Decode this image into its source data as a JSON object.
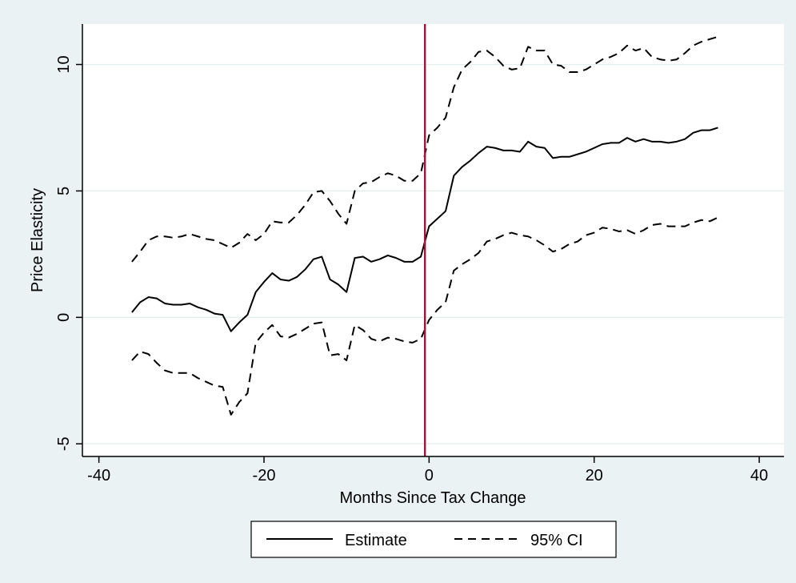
{
  "chart_data": {
    "type": "line",
    "title": "",
    "xlabel": "Months Since Tax Change",
    "ylabel": "Price Elasticity",
    "xlim": [
      -42,
      43
    ],
    "ylim": [
      -5.5,
      11.6
    ],
    "xticks": [
      -40,
      -20,
      0,
      20,
      40
    ],
    "xtick_labels": [
      "-40",
      "-20",
      "0",
      "20",
      "40"
    ],
    "yticks": [
      -5,
      0,
      5,
      10
    ],
    "ytick_labels": [
      "-5",
      "0",
      "5",
      "10"
    ],
    "grid": "horizontal",
    "legend_placement": "bottom",
    "event_line_x": -0.5,
    "x": [
      -36,
      -35,
      -34,
      -33,
      -32,
      -31,
      -30,
      -29,
      -28,
      -27,
      -26,
      -25,
      -24,
      -23,
      -22,
      -21,
      -20,
      -19,
      -18,
      -17,
      -16,
      -15,
      -14,
      -13,
      -12,
      -11,
      -10,
      -9,
      -8,
      -7,
      -6,
      -5,
      -4,
      -3,
      -2,
      -1,
      0,
      1,
      2,
      3,
      4,
      5,
      6,
      7,
      8,
      9,
      10,
      11,
      12,
      13,
      14,
      15,
      16,
      17,
      18,
      19,
      20,
      21,
      22,
      23,
      24,
      25,
      26,
      27,
      28,
      29,
      30,
      31,
      32,
      33,
      34,
      35
    ],
    "series": [
      {
        "name": "Estimate",
        "style": "solid",
        "values": [
          0.2,
          0.6,
          0.8,
          0.75,
          0.55,
          0.5,
          0.5,
          0.55,
          0.4,
          0.3,
          0.15,
          0.1,
          -0.55,
          -0.2,
          0.1,
          1.0,
          1.4,
          1.75,
          1.5,
          1.45,
          1.6,
          1.9,
          2.3,
          2.4,
          1.5,
          1.3,
          1.0,
          2.35,
          2.4,
          2.2,
          2.3,
          2.45,
          2.35,
          2.2,
          2.2,
          2.4,
          3.6,
          3.9,
          4.2,
          5.6,
          5.95,
          6.2,
          6.5,
          6.75,
          6.7,
          6.6,
          6.6,
          6.55,
          6.95,
          6.75,
          6.7,
          6.3,
          6.35,
          6.35,
          6.45,
          6.55,
          6.7,
          6.85,
          6.9,
          6.9,
          7.1,
          6.95,
          7.05,
          6.95,
          6.95,
          6.9,
          6.95,
          7.05,
          7.3,
          7.4,
          7.4,
          7.5
        ]
      },
      {
        "name": "95% CI",
        "style": "dashed",
        "values": [
          2.2,
          2.6,
          3.05,
          3.2,
          3.2,
          3.15,
          3.2,
          3.3,
          3.2,
          3.1,
          3.05,
          2.9,
          2.75,
          2.95,
          3.3,
          3.05,
          3.3,
          3.8,
          3.75,
          3.75,
          4.05,
          4.45,
          4.95,
          5.0,
          4.6,
          4.1,
          3.7,
          5.0,
          5.3,
          5.35,
          5.55,
          5.7,
          5.6,
          5.4,
          5.4,
          5.7,
          7.2,
          7.5,
          7.9,
          9.1,
          9.8,
          10.1,
          10.5,
          10.55,
          10.3,
          9.95,
          9.8,
          9.85,
          10.7,
          10.55,
          10.55,
          10.0,
          9.95,
          9.7,
          9.7,
          9.8,
          10.0,
          10.2,
          10.3,
          10.45,
          10.75,
          10.55,
          10.65,
          10.3,
          10.2,
          10.15,
          10.2,
          10.45,
          10.75,
          10.9,
          11.0,
          11.1
        ]
      },
      {
        "name": "95% CI",
        "style": "dashed",
        "values": [
          -1.7,
          -1.35,
          -1.45,
          -1.8,
          -2.1,
          -2.2,
          -2.2,
          -2.2,
          -2.4,
          -2.55,
          -2.7,
          -2.75,
          -3.85,
          -3.35,
          -3.0,
          -1.0,
          -0.6,
          -0.3,
          -0.75,
          -0.8,
          -0.65,
          -0.45,
          -0.25,
          -0.2,
          -1.5,
          -1.45,
          -1.7,
          -0.3,
          -0.5,
          -0.85,
          -0.95,
          -0.8,
          -0.85,
          -0.95,
          -1.0,
          -0.85,
          -0.1,
          0.3,
          0.6,
          1.85,
          2.1,
          2.3,
          2.55,
          3.0,
          3.1,
          3.25,
          3.35,
          3.25,
          3.2,
          3.05,
          2.85,
          2.6,
          2.7,
          2.9,
          3.0,
          3.25,
          3.35,
          3.55,
          3.5,
          3.4,
          3.45,
          3.3,
          3.45,
          3.65,
          3.7,
          3.6,
          3.6,
          3.6,
          3.75,
          3.85,
          3.8,
          3.95
        ]
      }
    ],
    "legend": [
      {
        "label": "Estimate",
        "style": "solid"
      },
      {
        "label": "95% CI",
        "style": "dashed"
      }
    ],
    "colors": {
      "background": "#eaf2f3",
      "plot_area": "#ffffff",
      "gridline": "#e7eeef",
      "series": "#000000",
      "event_line": "#a0143c"
    }
  }
}
